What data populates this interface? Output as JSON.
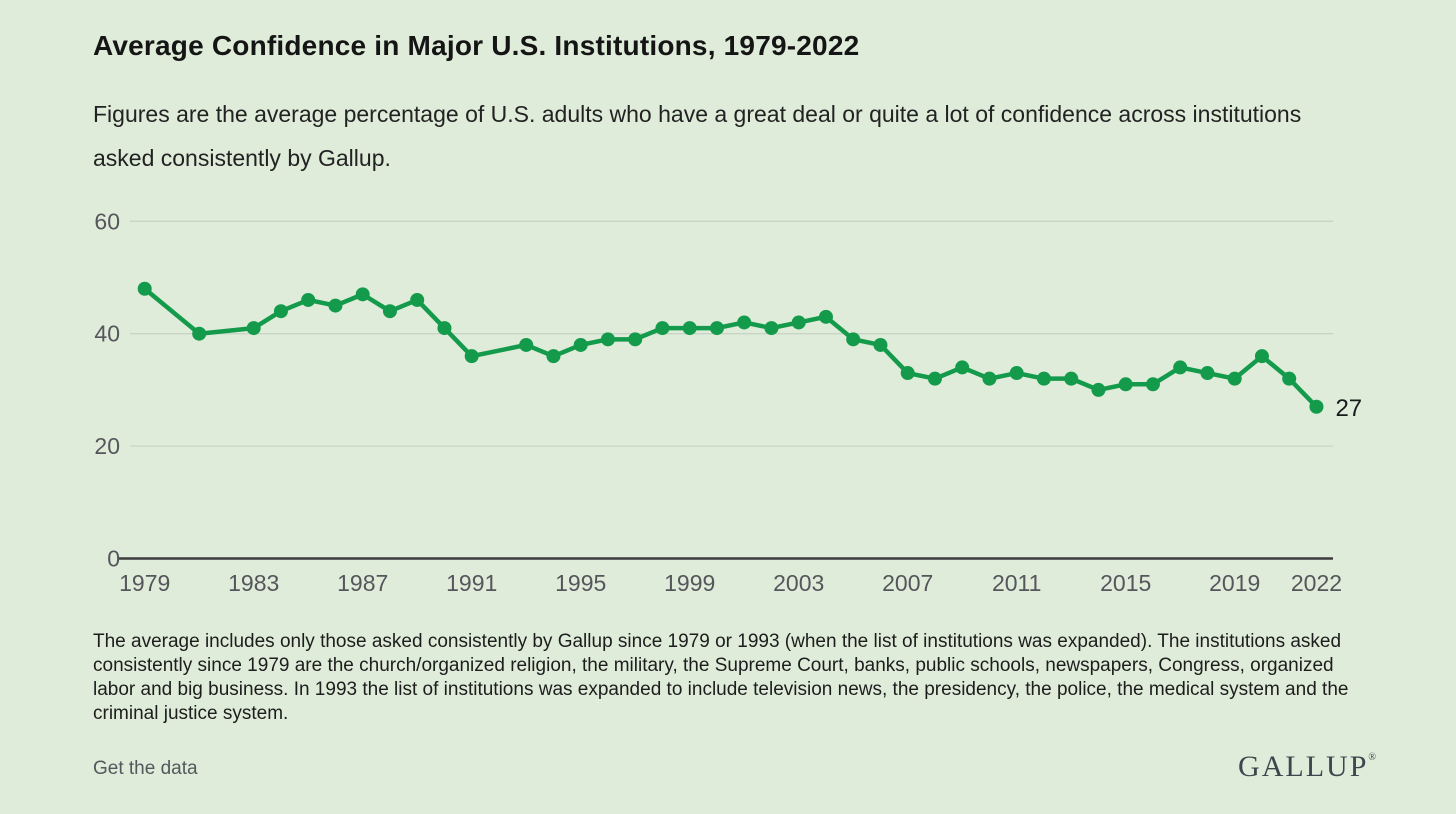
{
  "header": {
    "title": "Average Confidence in Major U.S. Institutions, 1979-2022",
    "subtitle": "Figures are the average percentage of U.S. adults who have a great deal or quite a lot of confidence across institutions asked consistently by Gallup."
  },
  "notes": {
    "footnote": "The average includes only those asked consistently by Gallup since 1979 or 1993 (when the list of institutions was expanded). The institutions asked consistently since 1979 are the church/organized religion, the military, the Supreme Court, banks, public schools, newspapers, Congress, organized labor and big business. In 1993 the list of institutions was expanded to include television news, the presidency, the police, the medical system and the criminal justice system."
  },
  "footer": {
    "link_label": "Get the data",
    "brand": "GALLUP",
    "brand_mark": "®"
  },
  "colors": {
    "background": "#dfecda",
    "line": "#149a4b",
    "gridline": "#c8d5c5",
    "axis_line": "#3c3c3c",
    "tick_label": "#55565b",
    "end_label": "#1a1a1a"
  },
  "chart_data": {
    "type": "line",
    "title": "Average Confidence in Major U.S. Institutions, 1979-2022",
    "xlabel": "",
    "ylabel": "",
    "x": [
      1979,
      1981,
      1983,
      1984,
      1985,
      1986,
      1987,
      1988,
      1989,
      1990,
      1991,
      1993,
      1994,
      1995,
      1996,
      1997,
      1998,
      1999,
      2000,
      2001,
      2002,
      2003,
      2004,
      2005,
      2006,
      2007,
      2008,
      2009,
      2010,
      2011,
      2012,
      2013,
      2014,
      2015,
      2016,
      2017,
      2018,
      2019,
      2020,
      2021,
      2022
    ],
    "y": [
      48,
      40,
      41,
      44,
      46,
      45,
      47,
      44,
      46,
      41,
      36,
      38,
      36,
      38,
      39,
      39,
      41,
      41,
      41,
      42,
      41,
      42,
      43,
      39,
      38,
      33,
      32,
      34,
      32,
      33,
      32,
      32,
      30,
      31,
      31,
      34,
      33,
      32,
      36,
      32,
      27
    ],
    "x_ticks": [
      1979,
      1983,
      1987,
      1991,
      1995,
      1999,
      2003,
      2007,
      2011,
      2015,
      2019,
      2022
    ],
    "y_ticks": [
      0,
      20,
      40,
      60
    ],
    "xlim": [
      1979,
      2022
    ],
    "ylim": [
      0,
      65
    ],
    "end_label": "27",
    "grid": true,
    "legend": false
  }
}
